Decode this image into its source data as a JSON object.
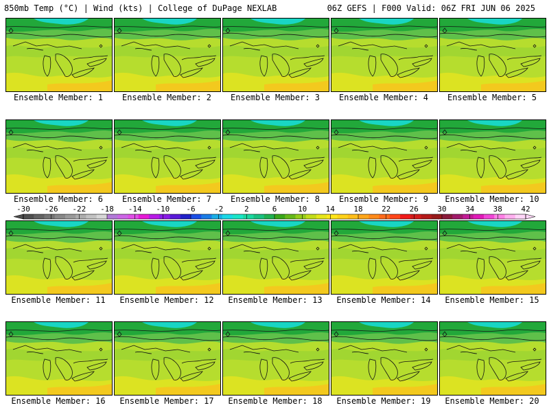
{
  "header": {
    "left_title": "850mb Temp (°C) | Wind (kts) | College of DuPage NEXLAB",
    "right_title": "06Z GEFS | F000 Valid: 06Z FRI JUN 06 2025"
  },
  "members": [
    {
      "label": "Ensemble Member: 1"
    },
    {
      "label": "Ensemble Member: 2"
    },
    {
      "label": "Ensemble Member: 3"
    },
    {
      "label": "Ensemble Member: 4"
    },
    {
      "label": "Ensemble Member: 5"
    },
    {
      "label": "Ensemble Member: 6"
    },
    {
      "label": "Ensemble Member: 7"
    },
    {
      "label": "Ensemble Member: 8"
    },
    {
      "label": "Ensemble Member: 9"
    },
    {
      "label": "Ensemble Member: 10"
    },
    {
      "label": "Ensemble Member: 11"
    },
    {
      "label": "Ensemble Member: 12"
    },
    {
      "label": "Ensemble Member: 13"
    },
    {
      "label": "Ensemble Member: 14"
    },
    {
      "label": "Ensemble Member: 15"
    },
    {
      "label": "Ensemble Member: 16"
    },
    {
      "label": "Ensemble Member: 17"
    },
    {
      "label": "Ensemble Member: 18"
    },
    {
      "label": "Ensemble Member: 19"
    },
    {
      "label": "Ensemble Member: 20"
    }
  ],
  "colorbar": {
    "ticks": [
      "-30",
      "-26",
      "-22",
      "-18",
      "-14",
      "-10",
      "-6",
      "-2",
      "2",
      "6",
      "10",
      "14",
      "18",
      "22",
      "26",
      "30",
      "34",
      "38",
      "42"
    ],
    "colors": [
      "#4e4e4e",
      "#626262",
      "#747474",
      "#888888",
      "#9a9a9a",
      "#adadad",
      "#c2c2c2",
      "#d7d7d7",
      "#b27ad8",
      "#cc66e6",
      "#e04de6",
      "#e61ad6",
      "#b81ae6",
      "#8a1ae6",
      "#5a1ad8",
      "#2020c8",
      "#1a4ee6",
      "#1a7ce6",
      "#1aaee6",
      "#1ad8e6",
      "#1ae6c8",
      "#1ad8a0",
      "#1ac080",
      "#20b050",
      "#3aa61a",
      "#66b81a",
      "#94cc1a",
      "#c2dc1a",
      "#e6e61a",
      "#ffe61a",
      "#ffd21a",
      "#ffbe1a",
      "#ffa61a",
      "#ff8a1a",
      "#ff6a1a",
      "#ff461a",
      "#f01a1a",
      "#d21a1a",
      "#b41a1a",
      "#961a1a",
      "#8a1a3a",
      "#a01a6a",
      "#c21a96",
      "#e01ab8",
      "#f046d6",
      "#ff80e6",
      "#ffb0f0",
      "#ffd6f8"
    ]
  }
}
